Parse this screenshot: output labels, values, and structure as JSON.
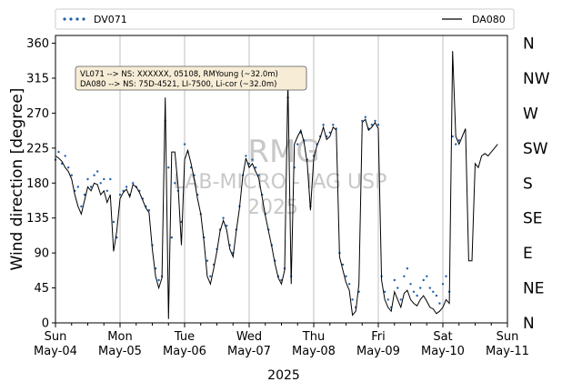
{
  "chart_data": {
    "type": "line",
    "xlabel": "2025",
    "ylabel": "Wind direction [degree]",
    "ylim": [
      0,
      370
    ],
    "yticks": [
      0,
      45,
      90,
      135,
      180,
      225,
      270,
      315,
      360
    ],
    "grid": "vertical",
    "x_start": "2025-05-04",
    "x_end": "2025-05-11",
    "xticks": [
      {
        "day": "Sun",
        "date": "May-04"
      },
      {
        "day": "Mon",
        "date": "May-05"
      },
      {
        "day": "Tue",
        "date": "May-06"
      },
      {
        "day": "Wed",
        "date": "May-07"
      },
      {
        "day": "Thu",
        "date": "May-08"
      },
      {
        "day": "Fri",
        "date": "May-09"
      },
      {
        "day": "Sat",
        "date": "May-10"
      },
      {
        "day": "Sun",
        "date": "May-11"
      }
    ],
    "compass_labels": [
      "N",
      "NE",
      "E",
      "SE",
      "S",
      "SW",
      "W",
      "NW",
      "N"
    ],
    "legend": {
      "placement": "top",
      "entries": [
        "DV071",
        "DA080"
      ]
    },
    "annotation": [
      "VL071 --> NS: XXXXXX, 05108, RMYoung (~32.0m)",
      "DA080 --> NS: 75D-4521, LI-7500, Li-cor (~32.0m)"
    ],
    "watermark": {
      "title": "RMG",
      "subtitle": "LAB-MICRO - IAG USP",
      "year": "2025"
    },
    "series": [
      {
        "name": "DV071",
        "style": "dots",
        "color": "#1f5fa8",
        "points": [
          [
            0.0,
            210
          ],
          [
            0.05,
            220
          ],
          [
            0.1,
            205
          ],
          [
            0.15,
            215
          ],
          [
            0.2,
            200
          ],
          [
            0.25,
            190
          ],
          [
            0.3,
            170
          ],
          [
            0.35,
            175
          ],
          [
            0.4,
            150
          ],
          [
            0.45,
            165
          ],
          [
            0.5,
            185
          ],
          [
            0.55,
            175
          ],
          [
            0.6,
            190
          ],
          [
            0.65,
            195
          ],
          [
            0.7,
            180
          ],
          [
            0.75,
            185
          ],
          [
            0.8,
            170
          ],
          [
            0.85,
            185
          ],
          [
            0.9,
            130
          ],
          [
            0.95,
            110
          ],
          [
            1.0,
            165
          ],
          [
            1.05,
            170
          ],
          [
            1.1,
            175
          ],
          [
            1.15,
            165
          ],
          [
            1.2,
            180
          ],
          [
            1.25,
            175
          ],
          [
            1.3,
            170
          ],
          [
            1.35,
            160
          ],
          [
            1.4,
            150
          ],
          [
            1.45,
            145
          ],
          [
            1.5,
            100
          ],
          [
            1.55,
            70
          ],
          [
            1.6,
            55
          ],
          [
            1.65,
            60
          ],
          [
            1.7,
            260
          ],
          [
            1.75,
            200
          ],
          [
            1.8,
            110
          ],
          [
            1.85,
            180
          ],
          [
            1.9,
            170
          ],
          [
            1.95,
            130
          ],
          [
            2.0,
            230
          ],
          [
            2.05,
            220
          ],
          [
            2.1,
            200
          ],
          [
            2.15,
            190
          ],
          [
            2.2,
            165
          ],
          [
            2.25,
            140
          ],
          [
            2.3,
            110
          ],
          [
            2.35,
            80
          ],
          [
            2.4,
            60
          ],
          [
            2.45,
            75
          ],
          [
            2.5,
            95
          ],
          [
            2.55,
            120
          ],
          [
            2.6,
            135
          ],
          [
            2.65,
            125
          ],
          [
            2.7,
            100
          ],
          [
            2.75,
            90
          ],
          [
            2.8,
            120
          ],
          [
            2.85,
            150
          ],
          [
            2.9,
            190
          ],
          [
            2.95,
            215
          ],
          [
            3.0,
            205
          ],
          [
            3.05,
            210
          ],
          [
            3.1,
            200
          ],
          [
            3.15,
            190
          ],
          [
            3.2,
            165
          ],
          [
            3.25,
            140
          ],
          [
            3.3,
            120
          ],
          [
            3.35,
            100
          ],
          [
            3.4,
            80
          ],
          [
            3.45,
            60
          ],
          [
            3.5,
            55
          ],
          [
            3.55,
            70
          ],
          [
            3.6,
            290
          ],
          [
            3.65,
            60
          ],
          [
            3.7,
            200
          ],
          [
            3.75,
            230
          ],
          [
            3.8,
            245
          ],
          [
            3.85,
            235
          ],
          [
            3.9,
            210
          ],
          [
            3.95,
            150
          ],
          [
            4.0,
            215
          ],
          [
            4.05,
            230
          ],
          [
            4.1,
            240
          ],
          [
            4.15,
            255
          ],
          [
            4.2,
            240
          ],
          [
            4.25,
            245
          ],
          [
            4.3,
            255
          ],
          [
            4.35,
            250
          ],
          [
            4.4,
            90
          ],
          [
            4.45,
            75
          ],
          [
            4.5,
            60
          ],
          [
            4.55,
            50
          ],
          [
            4.6,
            30
          ],
          [
            4.65,
            20
          ],
          [
            4.7,
            40
          ],
          [
            4.75,
            260
          ],
          [
            4.8,
            265
          ],
          [
            4.85,
            250
          ],
          [
            4.9,
            255
          ],
          [
            4.95,
            260
          ],
          [
            5.0,
            255
          ],
          [
            5.05,
            60
          ],
          [
            5.1,
            40
          ],
          [
            5.15,
            30
          ],
          [
            5.2,
            20
          ],
          [
            5.25,
            55
          ],
          [
            5.3,
            45
          ],
          [
            5.35,
            30
          ],
          [
            5.4,
            60
          ],
          [
            5.45,
            70
          ],
          [
            5.5,
            50
          ],
          [
            5.55,
            40
          ],
          [
            5.6,
            35
          ],
          [
            5.65,
            45
          ],
          [
            5.7,
            55
          ],
          [
            5.75,
            60
          ],
          [
            5.8,
            45
          ],
          [
            5.85,
            40
          ],
          [
            5.9,
            35
          ],
          [
            5.95,
            25
          ],
          [
            6.0,
            50
          ],
          [
            6.05,
            60
          ],
          [
            6.1,
            40
          ],
          [
            6.15,
            240
          ],
          [
            6.2,
            230
          ],
          [
            6.25,
            235
          ]
        ]
      },
      {
        "name": "DA080",
        "style": "line",
        "color": "#000000",
        "points": [
          [
            0.0,
            215
          ],
          [
            0.05,
            212
          ],
          [
            0.1,
            208
          ],
          [
            0.15,
            200
          ],
          [
            0.2,
            195
          ],
          [
            0.25,
            185
          ],
          [
            0.3,
            165
          ],
          [
            0.35,
            150
          ],
          [
            0.4,
            140
          ],
          [
            0.45,
            158
          ],
          [
            0.5,
            175
          ],
          [
            0.55,
            170
          ],
          [
            0.6,
            180
          ],
          [
            0.65,
            178
          ],
          [
            0.7,
            165
          ],
          [
            0.75,
            170
          ],
          [
            0.8,
            155
          ],
          [
            0.85,
            165
          ],
          [
            0.9,
            92
          ],
          [
            0.95,
            118
          ],
          [
            1.0,
            160
          ],
          [
            1.05,
            168
          ],
          [
            1.1,
            172
          ],
          [
            1.15,
            162
          ],
          [
            1.2,
            178
          ],
          [
            1.25,
            175
          ],
          [
            1.3,
            168
          ],
          [
            1.35,
            158
          ],
          [
            1.4,
            148
          ],
          [
            1.45,
            142
          ],
          [
            1.5,
            95
          ],
          [
            1.55,
            60
          ],
          [
            1.6,
            45
          ],
          [
            1.65,
            58
          ],
          [
            1.7,
            290
          ],
          [
            1.75,
            5
          ],
          [
            1.8,
            220
          ],
          [
            1.85,
            220
          ],
          [
            1.9,
            175
          ],
          [
            1.95,
            100
          ],
          [
            2.0,
            210
          ],
          [
            2.05,
            222
          ],
          [
            2.1,
            205
          ],
          [
            2.15,
            185
          ],
          [
            2.2,
            160
          ],
          [
            2.25,
            140
          ],
          [
            2.3,
            105
          ],
          [
            2.35,
            60
          ],
          [
            2.4,
            50
          ],
          [
            2.45,
            70
          ],
          [
            2.5,
            92
          ],
          [
            2.55,
            118
          ],
          [
            2.6,
            132
          ],
          [
            2.65,
            120
          ],
          [
            2.7,
            95
          ],
          [
            2.75,
            85
          ],
          [
            2.8,
            118
          ],
          [
            2.85,
            148
          ],
          [
            2.9,
            188
          ],
          [
            2.95,
            212
          ],
          [
            3.0,
            200
          ],
          [
            3.05,
            205
          ],
          [
            3.1,
            195
          ],
          [
            3.15,
            186
          ],
          [
            3.2,
            162
          ],
          [
            3.25,
            138
          ],
          [
            3.3,
            118
          ],
          [
            3.35,
            98
          ],
          [
            3.4,
            76
          ],
          [
            3.45,
            58
          ],
          [
            3.5,
            50
          ],
          [
            3.55,
            68
          ],
          [
            3.6,
            310
          ],
          [
            3.65,
            50
          ],
          [
            3.7,
            230
          ],
          [
            3.75,
            240
          ],
          [
            3.8,
            248
          ],
          [
            3.85,
            232
          ],
          [
            3.9,
            205
          ],
          [
            3.95,
            145
          ],
          [
            4.0,
            212
          ],
          [
            4.05,
            228
          ],
          [
            4.1,
            238
          ],
          [
            4.15,
            252
          ],
          [
            4.2,
            236
          ],
          [
            4.25,
            240
          ],
          [
            4.3,
            252
          ],
          [
            4.35,
            248
          ],
          [
            4.4,
            85
          ],
          [
            4.45,
            68
          ],
          [
            4.5,
            52
          ],
          [
            4.55,
            42
          ],
          [
            4.6,
            10
          ],
          [
            4.65,
            15
          ],
          [
            4.7,
            50
          ],
          [
            4.75,
            258
          ],
          [
            4.8,
            262
          ],
          [
            4.85,
            248
          ],
          [
            4.9,
            252
          ],
          [
            4.95,
            258
          ],
          [
            5.0,
            250
          ],
          [
            5.05,
            55
          ],
          [
            5.1,
            30
          ],
          [
            5.15,
            20
          ],
          [
            5.2,
            15
          ],
          [
            5.25,
            40
          ],
          [
            5.3,
            30
          ],
          [
            5.35,
            20
          ],
          [
            5.4,
            38
          ],
          [
            5.45,
            42
          ],
          [
            5.5,
            30
          ],
          [
            5.55,
            25
          ],
          [
            5.6,
            22
          ],
          [
            5.65,
            30
          ],
          [
            5.7,
            35
          ],
          [
            5.75,
            28
          ],
          [
            5.8,
            20
          ],
          [
            5.85,
            18
          ],
          [
            5.9,
            12
          ],
          [
            5.95,
            15
          ],
          [
            6.0,
            20
          ],
          [
            6.05,
            30
          ],
          [
            6.1,
            25
          ],
          [
            6.15,
            350
          ],
          [
            6.2,
            240
          ],
          [
            6.25,
            230
          ],
          [
            6.3,
            240
          ],
          [
            6.35,
            250
          ],
          [
            6.4,
            80
          ],
          [
            6.45,
            80
          ],
          [
            6.5,
            205
          ],
          [
            6.55,
            200
          ],
          [
            6.6,
            215
          ],
          [
            6.65,
            218
          ],
          [
            6.7,
            215
          ],
          [
            6.75,
            220
          ],
          [
            6.8,
            225
          ],
          [
            6.85,
            230
          ]
        ]
      }
    ]
  }
}
